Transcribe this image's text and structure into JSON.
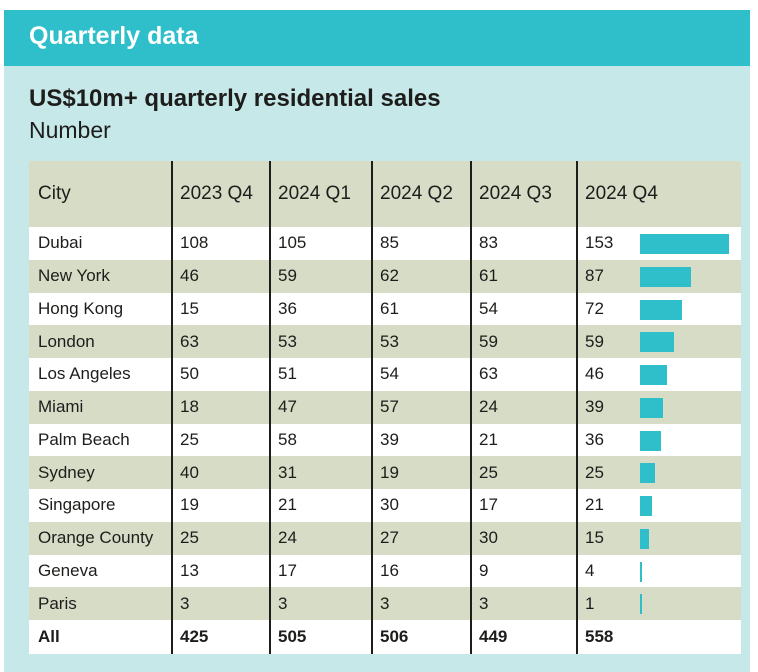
{
  "banner": {
    "title": "Quarterly data"
  },
  "chart_data": {
    "type": "table",
    "title": "US$10m+ quarterly residential sales",
    "subtitle": "Number",
    "columns": [
      "City",
      "2023 Q4",
      "2024 Q1",
      "2024 Q2",
      "2024 Q3",
      "2024 Q4"
    ],
    "rows": [
      {
        "city": "Dubai",
        "values": [
          108,
          105,
          85,
          83,
          153
        ]
      },
      {
        "city": "New York",
        "values": [
          46,
          59,
          62,
          61,
          87
        ]
      },
      {
        "city": "Hong Kong",
        "values": [
          15,
          36,
          61,
          54,
          72
        ]
      },
      {
        "city": "London",
        "values": [
          63,
          53,
          53,
          59,
          59
        ]
      },
      {
        "city": "Los Angeles",
        "values": [
          50,
          51,
          54,
          63,
          46
        ]
      },
      {
        "city": "Miami",
        "values": [
          18,
          47,
          57,
          24,
          39
        ]
      },
      {
        "city": "Palm Beach",
        "values": [
          25,
          58,
          39,
          21,
          36
        ]
      },
      {
        "city": "Sydney",
        "values": [
          40,
          31,
          19,
          25,
          25
        ]
      },
      {
        "city": "Singapore",
        "values": [
          19,
          21,
          30,
          17,
          21
        ]
      },
      {
        "city": "Orange County",
        "values": [
          25,
          24,
          27,
          30,
          15
        ]
      },
      {
        "city": "Geneva",
        "values": [
          13,
          17,
          16,
          9,
          4
        ]
      },
      {
        "city": "Paris",
        "values": [
          3,
          3,
          3,
          3,
          1
        ]
      }
    ],
    "total": {
      "label": "All",
      "values": [
        425,
        505,
        506,
        449,
        558
      ]
    },
    "bar_series": "2024 Q4",
    "bar_color": "#2fbfcb"
  }
}
